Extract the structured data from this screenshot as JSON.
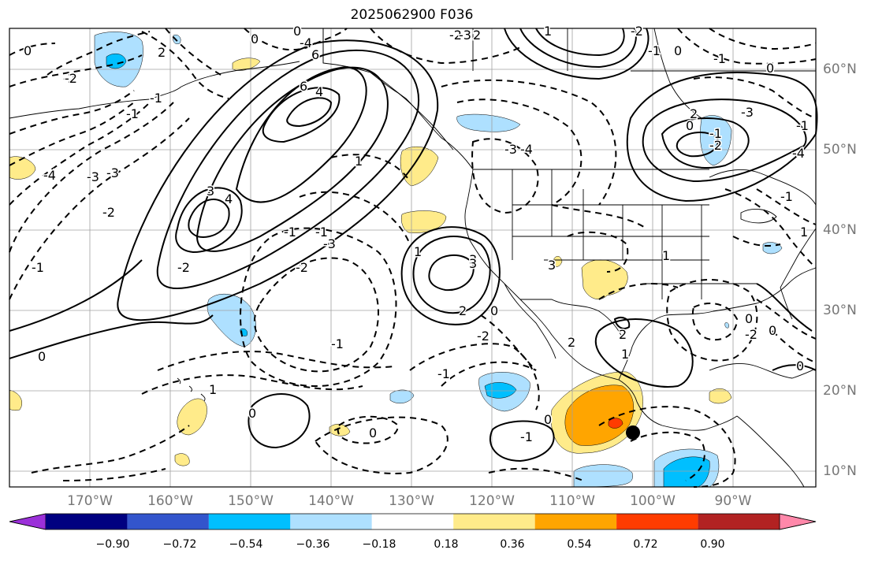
{
  "title": "2025062900 F036",
  "lat_labels": [
    "60°N",
    "50°N",
    "40°N",
    "30°N",
    "20°N",
    "10°N"
  ],
  "lon_labels": [
    "170°W",
    "160°W",
    "150°W",
    "140°W",
    "130°W",
    "120°W",
    "110°W",
    "100°W",
    "90°W"
  ],
  "colorbar": {
    "colors": [
      "#9b30d9",
      "#000080",
      "#3355cc",
      "#00bfff",
      "#aee0ff",
      "#ffffff",
      "#ffeb8a",
      "#ffa500",
      "#ff3c00",
      "#b22222",
      "#ff88aa"
    ],
    "labels": [
      "−0.90",
      "−0.72",
      "−0.54",
      "−0.36",
      "−0.18",
      "0.18",
      "0.36",
      "0.54",
      "0.72",
      "0.90"
    ]
  },
  "contour_labels": [
    "0",
    "-2",
    "2",
    "-1",
    "0",
    "6",
    "4",
    "6",
    "-3",
    "-2",
    "-1",
    "-2",
    "-4",
    "-3",
    "-1",
    "3",
    "4",
    "-2",
    "0",
    "1",
    "-3",
    "-2",
    "-1",
    "3",
    "1",
    "2",
    "0",
    "-1",
    "0",
    "-1",
    "-2",
    "0",
    "-3",
    "-4",
    "3",
    "-1",
    "1",
    "0",
    "-4",
    "-2",
    "-3",
    "2",
    "0",
    "-1",
    "2",
    "1",
    "0",
    "-2",
    "-1",
    "1",
    "0",
    "-1",
    "0",
    "1",
    "-2",
    "-1",
    "0",
    "-1",
    "0",
    "2",
    "-2",
    "-3",
    "-1",
    "-4",
    "1",
    "3",
    "2",
    "0"
  ]
}
